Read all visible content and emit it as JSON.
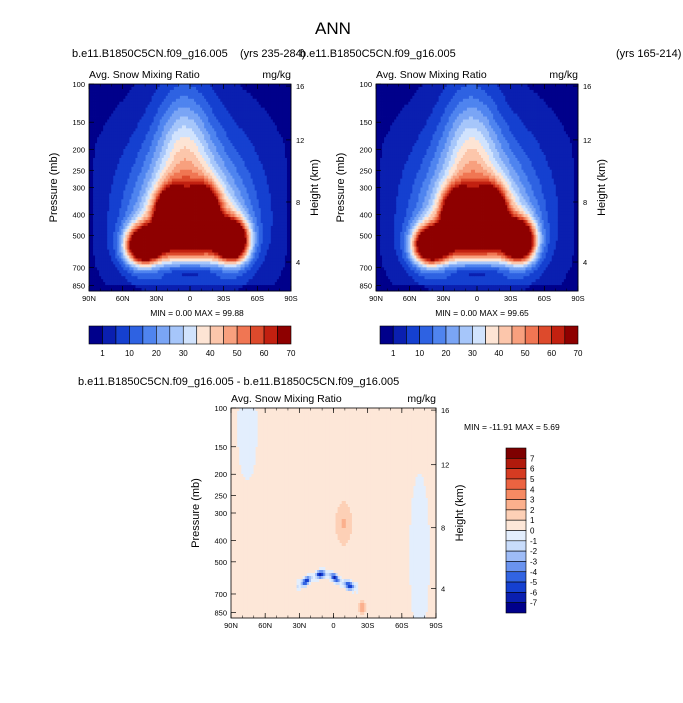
{
  "figure": {
    "title": "ANN"
  },
  "colors": {
    "abs_levels": [
      "#00008b",
      "#0a1fb0",
      "#1540d0",
      "#2e62e2",
      "#4f84ef",
      "#7aa5f5",
      "#a6c6fa",
      "#d1e3fd",
      "#fde4d4",
      "#fcc6ab",
      "#f8a07e",
      "#f07653",
      "#dd4a2c",
      "#c22010",
      "#8e0000"
    ],
    "diff_levels": [
      "#00008b",
      "#0a1fb0",
      "#1540d0",
      "#3264e2",
      "#6a93ef",
      "#9ebcf7",
      "#c8dcfb",
      "#e3eefd",
      "#fde7d8",
      "#fdd0b6",
      "#fbb08d",
      "#f68a63",
      "#ec6341",
      "#d53b22",
      "#b01a0c",
      "#7e0000"
    ]
  },
  "chart_data": [
    {
      "type": "heatmap",
      "name": "panel-left",
      "case_title_left": "b.e11.B1850C5CN.f09_g16.005",
      "case_title_right": "(yrs 235-284)",
      "title": "Avg. Snow Mixing Ratio",
      "units": "mg/kg",
      "ylabel": "Pressure (mb)",
      "ylabel_right": "Height (km)",
      "x_ticks": [
        "90N",
        "60N",
        "30N",
        "0",
        "30S",
        "60S",
        "90S"
      ],
      "y_ticks": [
        "100",
        "150",
        "200",
        "250",
        "300",
        "400",
        "500",
        "700",
        "850"
      ],
      "y2_ticks": [
        "16",
        "12",
        "8",
        "4"
      ],
      "min_label": "MIN =",
      "min_value": "0.00",
      "max_label": "MAX =",
      "max_value": "99.88",
      "colorbar_labels": [
        "1",
        "10",
        "20",
        "30",
        "40",
        "50",
        "60",
        "70"
      ]
    },
    {
      "type": "heatmap",
      "name": "panel-right",
      "case_title_left": "b.e11.B1850C5CN.f09_g16.005",
      "case_title_right": "(yrs 165-214)",
      "title": "Avg. Snow Mixing Ratio",
      "units": "mg/kg",
      "ylabel": "Pressure (mb)",
      "ylabel_right": "Height (km)",
      "x_ticks": [
        "90N",
        "60N",
        "30N",
        "0",
        "30S",
        "60S",
        "90S"
      ],
      "y_ticks": [
        "100",
        "150",
        "200",
        "250",
        "300",
        "400",
        "500",
        "700",
        "850"
      ],
      "y2_ticks": [
        "16",
        "12",
        "8",
        "4"
      ],
      "min_label": "MIN =",
      "min_value": "0.00",
      "max_label": "MAX =",
      "max_value": "99.65",
      "colorbar_labels": [
        "1",
        "10",
        "20",
        "30",
        "40",
        "50",
        "60",
        "70"
      ]
    },
    {
      "type": "heatmap",
      "name": "panel-diff",
      "case_title": "b.e11.B1850C5CN.f09_g16.005 - b.e11.B1850C5CN.f09_g16.005",
      "title": "Avg. Snow Mixing Ratio",
      "units": "mg/kg",
      "ylabel": "Pressure (mb)",
      "ylabel_right": "Height (km)",
      "x_ticks": [
        "90N",
        "60N",
        "30N",
        "0",
        "30S",
        "60S",
        "90S"
      ],
      "y_ticks": [
        "100",
        "150",
        "200",
        "250",
        "300",
        "400",
        "500",
        "700",
        "850"
      ],
      "y2_ticks": [
        "16",
        "12",
        "8",
        "4"
      ],
      "minmax_text": "MIN = -11.91  MAX =   5.69",
      "colorbar_labels": [
        "7",
        "6",
        "5",
        "4",
        "3",
        "2",
        "1",
        "0",
        "-1",
        "-2",
        "-3",
        "-4",
        "-5",
        "-6",
        "-7"
      ]
    }
  ]
}
